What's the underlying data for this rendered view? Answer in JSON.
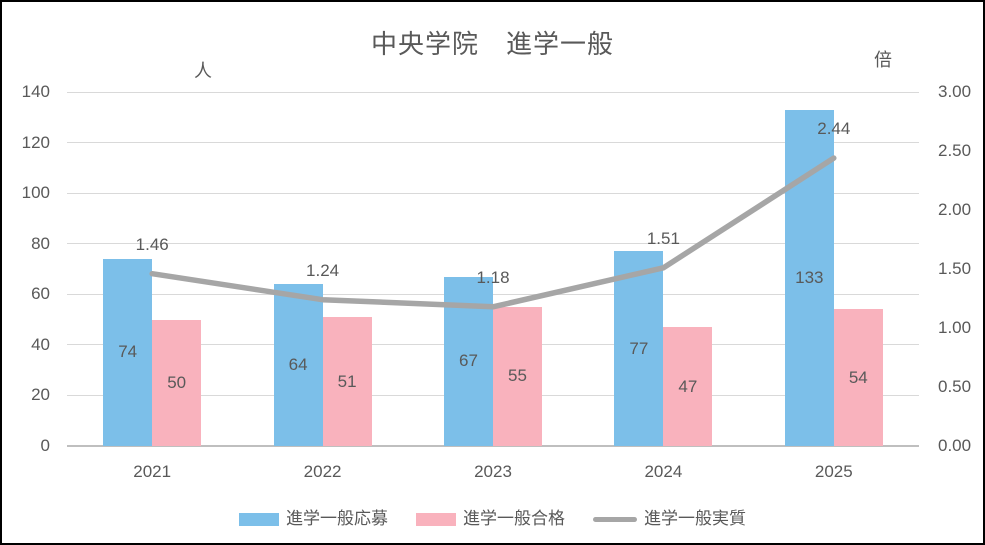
{
  "title": "中央学院　進学一般",
  "colors": {
    "applications_bar": "#7cbfe9",
    "accepted_bar": "#f9b2bd",
    "ratio_line": "#a6a6a6",
    "gridline": "#d9d9d9",
    "axis_line": "#bfbfbf",
    "text": "#595959"
  },
  "chart_data": {
    "type": "bar",
    "subtype": "clustered-bar-with-line",
    "title": "中央学院　進学一般",
    "categories": [
      "2021",
      "2022",
      "2023",
      "2024",
      "2025"
    ],
    "series": [
      {
        "name": "進学一般応募",
        "type": "bar",
        "axis": "left",
        "color": "#7cbfe9",
        "values": [
          74,
          64,
          67,
          77,
          133
        ],
        "labels": [
          "74",
          "64",
          "67",
          "77",
          "133"
        ]
      },
      {
        "name": "進学一般合格",
        "type": "bar",
        "axis": "left",
        "color": "#f9b2bd",
        "values": [
          50,
          51,
          55,
          47,
          54
        ],
        "labels": [
          "50",
          "51",
          "55",
          "47",
          "54"
        ]
      },
      {
        "name": "進学一般実質",
        "type": "line",
        "axis": "right",
        "color": "#a6a6a6",
        "values": [
          1.46,
          1.24,
          1.18,
          1.51,
          2.44
        ],
        "labels": [
          "1.46",
          "1.24",
          "1.18",
          "1.51",
          "2.44"
        ]
      }
    ],
    "left_axis": {
      "unit": "人",
      "min": 0,
      "max": 140,
      "step": 20,
      "tick_labels": [
        "0",
        "20",
        "40",
        "60",
        "80",
        "100",
        "120",
        "140"
      ]
    },
    "right_axis": {
      "unit": "倍",
      "min": 0,
      "max": 3,
      "step": 0.5,
      "tick_labels": [
        "0.00",
        "0.50",
        "1.00",
        "1.50",
        "2.00",
        "2.50",
        "3.00"
      ]
    },
    "grid": true,
    "legend_position": "bottom"
  }
}
